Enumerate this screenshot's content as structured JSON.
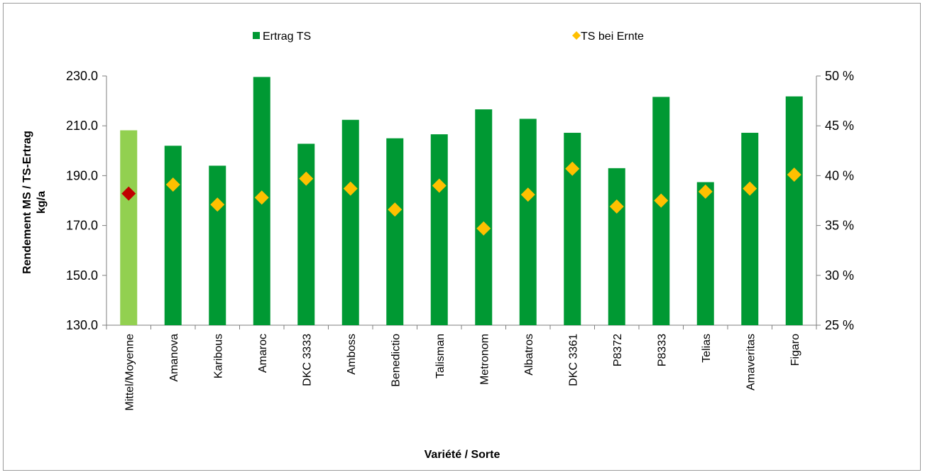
{
  "chart_data": {
    "type": "bar",
    "categories": [
      "Mittel/Moyenne",
      "Amanova",
      "Karibous",
      "Amaroc",
      "DKC 3333",
      "Amboss",
      "Benedictio",
      "Talisman",
      "Metronom",
      "Albatros",
      "DKC 3361",
      "P8372",
      "P8333",
      "Telias",
      "Amaveritas",
      "Figaro"
    ],
    "series": [
      {
        "name": "Ertrag TS",
        "axis": "left",
        "type": "bar",
        "values": [
          208.2,
          202.0,
          194.0,
          229.6,
          202.8,
          212.4,
          205.0,
          206.6,
          216.6,
          212.8,
          207.2,
          193.0,
          221.6,
          187.4,
          207.2,
          221.8
        ],
        "color": "#009933",
        "highlight_color": "#92d050",
        "highlight_index": 0
      },
      {
        "name": "TS bei Ernte",
        "axis": "right",
        "type": "scatter",
        "values": [
          38.2,
          39.1,
          37.1,
          37.8,
          39.7,
          38.7,
          36.6,
          39.0,
          34.7,
          38.1,
          40.7,
          36.9,
          37.5,
          38.4,
          38.7,
          40.1
        ],
        "color": "#ffc000",
        "highlight_color": "#c00000",
        "highlight_index": 0
      }
    ],
    "ylim": [
      130,
      230
    ],
    "yticks": [
      "230.0",
      "210.0",
      "190.0",
      "170.0",
      "150.0",
      "130.0"
    ],
    "y2lim": [
      25,
      50
    ],
    "y2ticks": [
      "50 %",
      "45 %",
      "40 %",
      "35 %",
      "30 %",
      "25 %"
    ],
    "ylabel": "Rendement MS / TS-Ertrag",
    "ylabel_unit": "kg/a",
    "xlabel": "Variété / Sorte",
    "legend_position": "top",
    "grid": false
  }
}
